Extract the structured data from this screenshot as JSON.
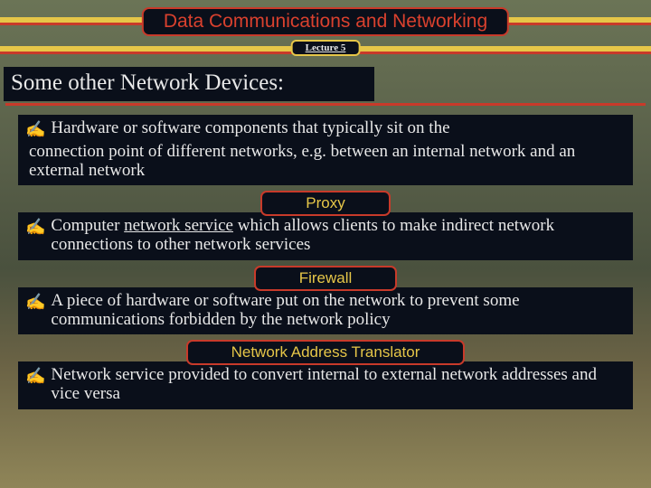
{
  "title": "Data Communications and Networking",
  "lecture": "Lecture 5",
  "heading": "Some other Network Devices:",
  "bullet_glyph": "✍",
  "intro": {
    "line1": "Hardware or software components that typically sit on the",
    "rest": "connection point of different networks, e.g. between an internal network and an external network"
  },
  "sections": [
    {
      "label": "Proxy",
      "text_pre": "Computer ",
      "text_underlined": "network service",
      "text_post": " which allows clients to make indirect network connections to other network services"
    },
    {
      "label": "Firewall",
      "text_pre": "A piece of hardware or software put on the network to prevent some communications forbidden by the network policy",
      "text_underlined": "",
      "text_post": ""
    },
    {
      "label": "Network Address Translator",
      "text_pre": "Network service provided  to convert internal to external network addresses and vice versa",
      "text_underlined": "",
      "text_post": ""
    }
  ],
  "colors": {
    "bg_dark": "#0a0f1a",
    "yellow": "#e6c648",
    "red": "#c83a2a",
    "title_red": "#d9412e",
    "text": "#e8e8e8"
  }
}
